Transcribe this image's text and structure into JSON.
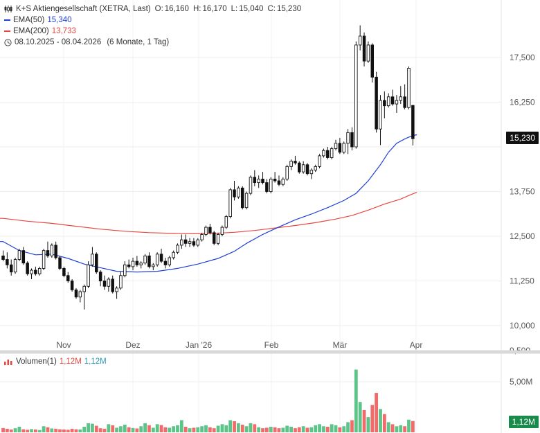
{
  "legend": {
    "title": "K+S Aktiengesellschaft (XETRA, Last)",
    "ohlc": {
      "o_label": "O:",
      "o": "16,160",
      "h_label": "H:",
      "h": "16,170",
      "l_label": "L:",
      "l": "15,040",
      "c_label": "C:",
      "c": "15,230"
    },
    "ema50_label": "EMA(50)",
    "ema50_value": "15,340",
    "ema200_label": "EMA(200)",
    "ema200_value": "13,733",
    "range": "08.10.2025 - 08.04.2026",
    "range_detail": "(6 Monate, 1 Tag)",
    "clock_icon": "clock-icon"
  },
  "volume_legend": {
    "label": "Volumen(1)",
    "value_red": "1,12M",
    "value_blue": "1,12M"
  },
  "price_badge": "15,230",
  "volume_badge": "1,12M",
  "colors": {
    "ema50": "#1f3fd6",
    "ema200": "#e8473f",
    "candle": "#111111",
    "vol_up": "#5cc488",
    "vol_down": "#f26b6b",
    "badge_price": "#111111",
    "badge_volume": "#1a8b4a"
  },
  "chart_data": {
    "type": "candlestick",
    "price_axis": {
      "ticks": [
        10000,
        11250,
        12500,
        13750,
        16250,
        17500
      ],
      "tick_labels": [
        "10,000",
        "11,250",
        "12,500",
        "13,750",
        "16,250",
        "17,500"
      ],
      "partial_label": "9,500",
      "range": [
        9500,
        18500
      ]
    },
    "time_labels": [
      "Nov",
      "Dez",
      "Jan '26",
      "Feb",
      "Mär",
      "Apr"
    ],
    "volume_axis": {
      "tick_label": "5,00M",
      "tick_value": 5000000
    },
    "candles": [
      [
        11950,
        12100,
        11800,
        11850
      ],
      [
        11850,
        12050,
        11600,
        11700
      ],
      [
        11700,
        11850,
        11400,
        11500
      ],
      [
        11500,
        11900,
        11450,
        11850
      ],
      [
        11850,
        12150,
        11800,
        12100
      ],
      [
        12100,
        12200,
        11700,
        11750
      ],
      [
        11750,
        11800,
        11400,
        11450
      ],
      [
        11450,
        11600,
        11300,
        11550
      ],
      [
        11550,
        11650,
        11400,
        11450
      ],
      [
        11450,
        11650,
        11400,
        11600
      ],
      [
        11600,
        12150,
        11550,
        12100
      ],
      [
        12100,
        12350,
        11900,
        11950
      ],
      [
        11950,
        12300,
        11900,
        12250
      ],
      [
        12250,
        12350,
        11850,
        11900
      ],
      [
        11900,
        11950,
        11550,
        11600
      ],
      [
        11600,
        11650,
        11350,
        11400
      ],
      [
        11400,
        11500,
        11200,
        11250
      ],
      [
        11250,
        11300,
        10950,
        11000
      ],
      [
        11000,
        11050,
        10750,
        10800
      ],
      [
        10800,
        11000,
        10650,
        10950
      ],
      [
        10950,
        11150,
        10450,
        11100
      ],
      [
        11100,
        11800,
        11050,
        11700
      ],
      [
        11700,
        12200,
        11650,
        12000
      ],
      [
        12000,
        12050,
        11450,
        11500
      ],
      [
        11500,
        11550,
        11100,
        11250
      ],
      [
        11250,
        11400,
        11000,
        11100
      ],
      [
        11100,
        11350,
        10950,
        11300
      ],
      [
        11300,
        11400,
        10900,
        10950
      ],
      [
        10950,
        11100,
        10750,
        11050
      ],
      [
        11050,
        11500,
        11000,
        11400
      ],
      [
        11400,
        11800,
        11350,
        11700
      ],
      [
        11700,
        11850,
        11600,
        11650
      ],
      [
        11650,
        11900,
        11550,
        11800
      ],
      [
        11800,
        11950,
        11650,
        11700
      ],
      [
        11700,
        11800,
        11600,
        11750
      ],
      [
        11750,
        12000,
        11700,
        11950
      ],
      [
        11950,
        12050,
        11600,
        11650
      ],
      [
        11650,
        11750,
        11550,
        11700
      ],
      [
        11700,
        12050,
        11650,
        12000
      ],
      [
        12000,
        12150,
        11750,
        11800
      ],
      [
        11800,
        11900,
        11600,
        11700
      ],
      [
        11700,
        11950,
        11650,
        11900
      ],
      [
        11900,
        12100,
        11850,
        12050
      ],
      [
        12050,
        12300,
        12000,
        12250
      ],
      [
        12250,
        12550,
        12150,
        12400
      ],
      [
        12400,
        12550,
        12200,
        12300
      ],
      [
        12300,
        12450,
        12200,
        12350
      ],
      [
        12350,
        12450,
        12200,
        12250
      ],
      [
        12250,
        12450,
        12200,
        12400
      ],
      [
        12400,
        12600,
        12350,
        12550
      ],
      [
        12550,
        12800,
        12500,
        12750
      ],
      [
        12750,
        12850,
        12550,
        12600
      ],
      [
        12600,
        12650,
        12250,
        12300
      ],
      [
        12300,
        12600,
        12250,
        12550
      ],
      [
        12550,
        12800,
        12500,
        12750
      ],
      [
        12750,
        13100,
        12700,
        13050
      ],
      [
        13050,
        13850,
        13000,
        13800
      ],
      [
        13800,
        14050,
        13500,
        13600
      ],
      [
        13600,
        13900,
        13550,
        13850
      ],
      [
        13850,
        13900,
        13250,
        13300
      ],
      [
        13300,
        13750,
        13250,
        13700
      ],
      [
        13700,
        14200,
        13650,
        14150
      ],
      [
        14150,
        14350,
        13900,
        14000
      ],
      [
        14000,
        14200,
        13850,
        14100
      ],
      [
        14100,
        14300,
        13950,
        14000
      ],
      [
        14000,
        14100,
        13700,
        13750
      ],
      [
        13750,
        14150,
        13700,
        14100
      ],
      [
        14100,
        14300,
        14000,
        14050
      ],
      [
        14050,
        14200,
        13900,
        13950
      ],
      [
        13950,
        14150,
        13900,
        14100
      ],
      [
        14100,
        14500,
        14050,
        14450
      ],
      [
        14450,
        14650,
        14350,
        14600
      ],
      [
        14600,
        14750,
        14500,
        14550
      ],
      [
        14550,
        14600,
        14250,
        14300
      ],
      [
        14300,
        14600,
        14250,
        14500
      ],
      [
        14500,
        14550,
        14200,
        14250
      ],
      [
        14250,
        14400,
        14100,
        14350
      ],
      [
        14350,
        14500,
        14300,
        14450
      ],
      [
        14450,
        14800,
        14400,
        14750
      ],
      [
        14750,
        14950,
        14700,
        14900
      ],
      [
        14900,
        15000,
        14650,
        14700
      ],
      [
        14700,
        15000,
        14650,
        14950
      ],
      [
        14950,
        15200,
        14900,
        15100
      ],
      [
        15100,
        15250,
        14800,
        14850
      ],
      [
        14850,
        15150,
        14800,
        15100
      ],
      [
        15100,
        15500,
        14800,
        15400
      ],
      [
        15400,
        15550,
        14900,
        15000
      ],
      [
        15000,
        17950,
        14950,
        17850
      ],
      [
        17850,
        18400,
        17700,
        18100
      ],
      [
        18100,
        18200,
        17250,
        17400
      ],
      [
        17400,
        17950,
        17350,
        17850
      ],
      [
        17850,
        17900,
        16800,
        16950
      ],
      [
        16950,
        17100,
        15400,
        15500
      ],
      [
        15500,
        16450,
        15050,
        16300
      ],
      [
        16300,
        16550,
        15800,
        16150
      ],
      [
        16150,
        16500,
        16100,
        16400
      ],
      [
        16400,
        16600,
        16150,
        16200
      ],
      [
        16200,
        16450,
        15950,
        16300
      ],
      [
        16300,
        16700,
        16200,
        16400
      ],
      [
        16400,
        16750,
        16050,
        16100
      ],
      [
        16100,
        17250,
        16050,
        17200
      ],
      [
        16160,
        16170,
        15040,
        15230
      ]
    ],
    "ema50": [
      [
        0,
        12350
      ],
      [
        4,
        12100
      ],
      [
        8,
        11980
      ],
      [
        12,
        12000
      ],
      [
        16,
        11880
      ],
      [
        20,
        11720
      ],
      [
        24,
        11620
      ],
      [
        28,
        11520
      ],
      [
        33,
        11500
      ],
      [
        38,
        11520
      ],
      [
        43,
        11600
      ],
      [
        48,
        11720
      ],
      [
        53,
        11880
      ],
      [
        57,
        12080
      ],
      [
        60,
        12300
      ],
      [
        64,
        12550
      ],
      [
        68,
        12760
      ],
      [
        72,
        12960
      ],
      [
        76,
        13120
      ],
      [
        80,
        13300
      ],
      [
        84,
        13500
      ],
      [
        87,
        13700
      ],
      [
        90,
        14050
      ],
      [
        93,
        14500
      ],
      [
        95,
        14850
      ],
      [
        97,
        15100
      ],
      [
        99,
        15220
      ],
      [
        101,
        15320
      ],
      [
        102,
        15340
      ]
    ],
    "ema200": [
      [
        0,
        13000
      ],
      [
        6,
        12920
      ],
      [
        12,
        12860
      ],
      [
        18,
        12780
      ],
      [
        24,
        12700
      ],
      [
        30,
        12640
      ],
      [
        36,
        12600
      ],
      [
        42,
        12580
      ],
      [
        47,
        12570
      ],
      [
        52,
        12580
      ],
      [
        57,
        12610
      ],
      [
        62,
        12660
      ],
      [
        67,
        12730
      ],
      [
        72,
        12800
      ],
      [
        77,
        12880
      ],
      [
        82,
        12980
      ],
      [
        86,
        13080
      ],
      [
        90,
        13230
      ],
      [
        94,
        13400
      ],
      [
        98,
        13540
      ],
      [
        100,
        13640
      ],
      [
        102,
        13733
      ]
    ],
    "volume_millions": [
      0.42,
      0.35,
      0.28,
      0.4,
      0.55,
      0.3,
      0.25,
      0.32,
      0.28,
      0.22,
      0.6,
      0.5,
      0.38,
      0.35,
      0.3,
      0.28,
      0.25,
      0.35,
      0.3,
      0.28,
      0.55,
      0.9,
      0.85,
      0.65,
      0.4,
      0.35,
      0.8,
      0.7,
      0.45,
      0.6,
      0.75,
      0.5,
      0.42,
      0.38,
      0.6,
      0.9,
      0.7,
      0.45,
      0.8,
      0.72,
      0.5,
      0.45,
      0.6,
      0.7,
      1.2,
      0.55,
      0.4,
      0.45,
      0.5,
      0.6,
      0.7,
      0.5,
      0.4,
      0.65,
      0.8,
      0.7,
      1.2,
      1.1,
      0.9,
      0.75,
      0.6,
      0.9,
      0.8,
      0.5,
      0.4,
      0.45,
      0.55,
      0.5,
      0.4,
      0.45,
      0.65,
      0.55,
      0.4,
      0.5,
      0.6,
      0.45,
      0.5,
      0.7,
      0.8,
      0.6,
      0.55,
      0.8,
      0.7,
      0.5,
      0.6,
      1.0,
      1.2,
      6.2,
      3.0,
      2.2,
      1.5,
      2.7,
      3.9,
      2.3,
      1.8,
      1.0,
      0.8,
      0.6,
      0.7,
      0.6,
      1.25,
      1.12
    ]
  }
}
